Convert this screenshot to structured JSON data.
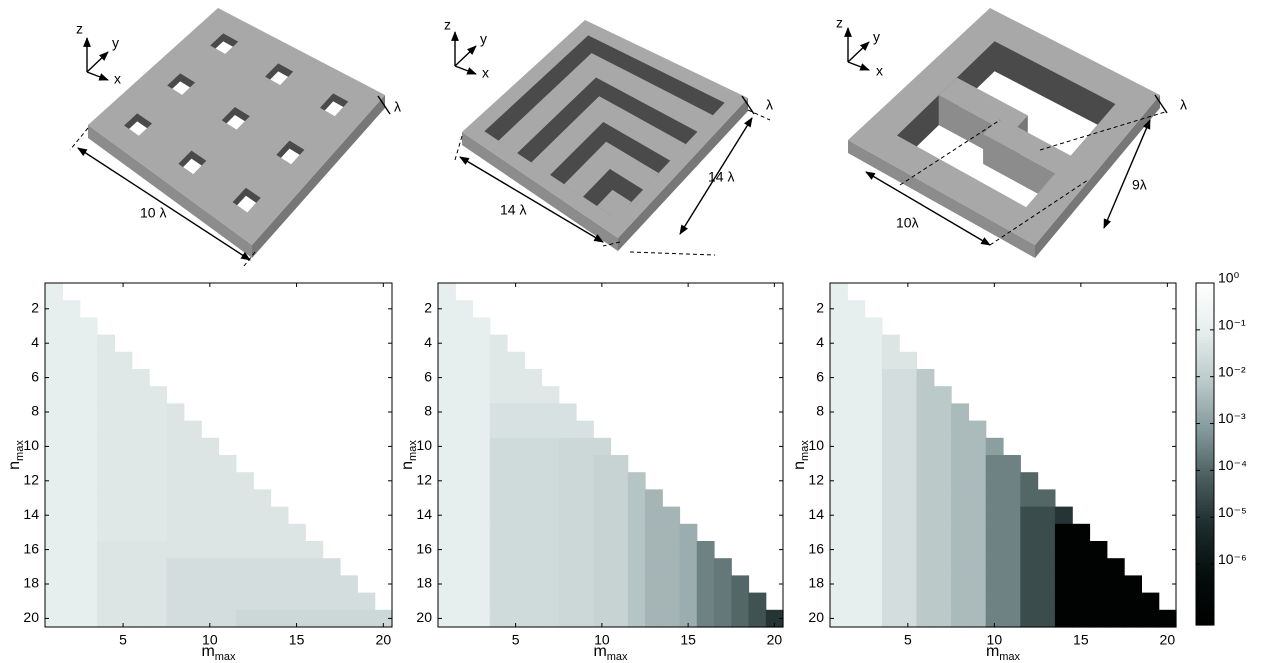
{
  "illustrations": [
    {
      "labels": [
        "z",
        "y",
        "x",
        "λ",
        "10 λ"
      ]
    },
    {
      "labels": [
        "z",
        "y",
        "x",
        "λ",
        "14 λ",
        "14 λ"
      ]
    },
    {
      "labels": [
        "z",
        "y",
        "x",
        "λ",
        "10λ",
        "9λ"
      ]
    }
  ],
  "colorbar": {
    "log": true,
    "clim": [
      5e-08,
      1
    ],
    "colormap": [
      "#000000",
      "#050c0c",
      "#1c2b2b",
      "#4a5d5d",
      "#84999a",
      "#bccaca",
      "#e6eded",
      "#ffffff"
    ],
    "ticks": [
      {
        "value": 1,
        "label": "10⁰"
      },
      {
        "value": 0.1,
        "label": "10⁻¹"
      },
      {
        "value": 0.01,
        "label": "10⁻²"
      },
      {
        "value": 0.001,
        "label": "10⁻³"
      },
      {
        "value": 0.0001,
        "label": "10⁻⁴"
      },
      {
        "value": 1e-05,
        "label": "10⁻⁵"
      },
      {
        "value": 1e-06,
        "label": "10⁻⁶"
      }
    ]
  },
  "chart_data": [
    {
      "type": "heatmap",
      "xlabel": "m",
      "xlabel_sub": "max",
      "ylabel": "n",
      "ylabel_sub": "max",
      "x": [
        1,
        2,
        3,
        4,
        5,
        6,
        7,
        8,
        9,
        10,
        11,
        12,
        13,
        14,
        15,
        16,
        17,
        18,
        19,
        20
      ],
      "y": [
        1,
        2,
        3,
        4,
        5,
        6,
        7,
        8,
        9,
        10,
        11,
        12,
        13,
        14,
        15,
        16,
        17,
        18,
        19,
        20
      ],
      "xlim": [
        0.5,
        20.5
      ],
      "ylim": [
        20.5,
        0.5
      ],
      "xticks": [
        5,
        10,
        15,
        20
      ],
      "yticks": [
        2,
        4,
        6,
        8,
        10,
        12,
        14,
        16,
        18,
        20
      ],
      "z": [
        [
          0.1
        ],
        [
          0.1,
          0.1
        ],
        [
          0.1,
          0.1,
          0.1
        ],
        [
          0.1,
          0.1,
          0.1,
          0.06
        ],
        [
          0.1,
          0.1,
          0.1,
          0.06,
          0.06
        ],
        [
          0.1,
          0.1,
          0.1,
          0.06,
          0.06,
          0.06
        ],
        [
          0.1,
          0.1,
          0.1,
          0.06,
          0.06,
          0.06,
          0.06
        ],
        [
          0.1,
          0.1,
          0.1,
          0.06,
          0.06,
          0.06,
          0.06,
          0.05
        ],
        [
          0.1,
          0.1,
          0.1,
          0.06,
          0.06,
          0.06,
          0.06,
          0.05,
          0.05
        ],
        [
          0.1,
          0.1,
          0.1,
          0.06,
          0.06,
          0.06,
          0.06,
          0.05,
          0.05,
          0.05
        ],
        [
          0.1,
          0.1,
          0.1,
          0.06,
          0.06,
          0.06,
          0.06,
          0.05,
          0.05,
          0.05,
          0.05
        ],
        [
          0.1,
          0.1,
          0.1,
          0.06,
          0.06,
          0.06,
          0.06,
          0.05,
          0.05,
          0.05,
          0.05,
          0.05
        ],
        [
          0.1,
          0.1,
          0.1,
          0.06,
          0.06,
          0.06,
          0.06,
          0.05,
          0.05,
          0.05,
          0.05,
          0.05,
          0.05
        ],
        [
          0.1,
          0.1,
          0.1,
          0.06,
          0.06,
          0.06,
          0.06,
          0.05,
          0.05,
          0.05,
          0.05,
          0.05,
          0.05,
          0.05
        ],
        [
          0.1,
          0.1,
          0.1,
          0.06,
          0.06,
          0.06,
          0.06,
          0.05,
          0.05,
          0.05,
          0.05,
          0.05,
          0.05,
          0.05,
          0.05
        ],
        [
          0.1,
          0.1,
          0.1,
          0.05,
          0.05,
          0.05,
          0.05,
          0.05,
          0.05,
          0.05,
          0.05,
          0.05,
          0.05,
          0.05,
          0.05,
          0.05
        ],
        [
          0.1,
          0.1,
          0.1,
          0.05,
          0.05,
          0.05,
          0.05,
          0.03,
          0.03,
          0.03,
          0.03,
          0.03,
          0.03,
          0.03,
          0.03,
          0.03,
          0.03
        ],
        [
          0.1,
          0.1,
          0.1,
          0.05,
          0.05,
          0.05,
          0.05,
          0.03,
          0.03,
          0.03,
          0.03,
          0.03,
          0.03,
          0.03,
          0.03,
          0.03,
          0.03,
          0.03
        ],
        [
          0.1,
          0.1,
          0.1,
          0.05,
          0.05,
          0.05,
          0.05,
          0.03,
          0.03,
          0.03,
          0.03,
          0.03,
          0.03,
          0.03,
          0.03,
          0.03,
          0.03,
          0.03,
          0.03
        ],
        [
          0.1,
          0.1,
          0.1,
          0.05,
          0.05,
          0.05,
          0.05,
          0.03,
          0.03,
          0.03,
          0.03,
          0.02,
          0.02,
          0.02,
          0.02,
          0.02,
          0.02,
          0.02,
          0.02,
          0.02
        ]
      ]
    },
    {
      "type": "heatmap",
      "xlabel": "m",
      "xlabel_sub": "max",
      "ylabel": "n",
      "ylabel_sub": "max",
      "x": [
        1,
        2,
        3,
        4,
        5,
        6,
        7,
        8,
        9,
        10,
        11,
        12,
        13,
        14,
        15,
        16,
        17,
        18,
        19,
        20
      ],
      "y": [
        1,
        2,
        3,
        4,
        5,
        6,
        7,
        8,
        9,
        10,
        11,
        12,
        13,
        14,
        15,
        16,
        17,
        18,
        19,
        20
      ],
      "xlim": [
        0.5,
        20.5
      ],
      "ylim": [
        20.5,
        0.5
      ],
      "xticks": [
        5,
        10,
        15,
        20
      ],
      "yticks": [
        2,
        4,
        6,
        8,
        10,
        12,
        14,
        16,
        18,
        20
      ],
      "z": [
        [
          0.1
        ],
        [
          0.1,
          0.1
        ],
        [
          0.1,
          0.1,
          0.1
        ],
        [
          0.1,
          0.1,
          0.1,
          0.06
        ],
        [
          0.1,
          0.1,
          0.1,
          0.06,
          0.06
        ],
        [
          0.1,
          0.1,
          0.1,
          0.06,
          0.06,
          0.06
        ],
        [
          0.1,
          0.1,
          0.1,
          0.06,
          0.06,
          0.06,
          0.06
        ],
        [
          0.1,
          0.1,
          0.1,
          0.04,
          0.04,
          0.04,
          0.04,
          0.04
        ],
        [
          0.1,
          0.1,
          0.1,
          0.04,
          0.04,
          0.04,
          0.04,
          0.04,
          0.04
        ],
        [
          0.1,
          0.1,
          0.1,
          0.025,
          0.025,
          0.025,
          0.025,
          0.02,
          0.02,
          0.02
        ],
        [
          0.1,
          0.1,
          0.1,
          0.025,
          0.025,
          0.025,
          0.025,
          0.02,
          0.02,
          0.015,
          0.015
        ],
        [
          0.1,
          0.1,
          0.1,
          0.025,
          0.025,
          0.025,
          0.025,
          0.02,
          0.02,
          0.015,
          0.015,
          0.006
        ],
        [
          0.1,
          0.1,
          0.1,
          0.025,
          0.025,
          0.025,
          0.025,
          0.02,
          0.02,
          0.015,
          0.015,
          0.006,
          0.003
        ],
        [
          0.1,
          0.1,
          0.1,
          0.025,
          0.025,
          0.025,
          0.025,
          0.02,
          0.02,
          0.015,
          0.015,
          0.006,
          0.003,
          0.003
        ],
        [
          0.1,
          0.1,
          0.1,
          0.025,
          0.025,
          0.025,
          0.025,
          0.02,
          0.02,
          0.015,
          0.015,
          0.006,
          0.003,
          0.003,
          0.002
        ],
        [
          0.1,
          0.1,
          0.1,
          0.025,
          0.025,
          0.025,
          0.025,
          0.02,
          0.02,
          0.015,
          0.015,
          0.006,
          0.003,
          0.003,
          0.002,
          0.0003
        ],
        [
          0.1,
          0.1,
          0.1,
          0.025,
          0.025,
          0.025,
          0.025,
          0.02,
          0.02,
          0.015,
          0.015,
          0.006,
          0.003,
          0.003,
          0.002,
          0.0003,
          0.0002
        ],
        [
          0.1,
          0.1,
          0.1,
          0.025,
          0.025,
          0.025,
          0.025,
          0.02,
          0.02,
          0.015,
          0.015,
          0.006,
          0.003,
          0.003,
          0.002,
          0.0003,
          0.0002,
          0.0001
        ],
        [
          0.1,
          0.1,
          0.1,
          0.025,
          0.025,
          0.025,
          0.025,
          0.02,
          0.02,
          0.015,
          0.015,
          0.006,
          0.003,
          0.003,
          0.002,
          0.0003,
          0.0002,
          0.0001,
          4e-05
        ],
        [
          0.1,
          0.1,
          0.1,
          0.025,
          0.025,
          0.025,
          0.025,
          0.02,
          0.02,
          0.015,
          0.015,
          0.006,
          0.003,
          0.003,
          0.002,
          0.0003,
          0.0002,
          0.0001,
          4e-05,
          1e-05
        ]
      ]
    },
    {
      "type": "heatmap",
      "xlabel": "m",
      "xlabel_sub": "max",
      "ylabel": "n",
      "ylabel_sub": "max",
      "x": [
        1,
        2,
        3,
        4,
        5,
        6,
        7,
        8,
        9,
        10,
        11,
        12,
        13,
        14,
        15,
        16,
        17,
        18,
        19,
        20
      ],
      "y": [
        1,
        2,
        3,
        4,
        5,
        6,
        7,
        8,
        9,
        10,
        11,
        12,
        13,
        14,
        15,
        16,
        17,
        18,
        19,
        20
      ],
      "xlim": [
        0.5,
        20.5
      ],
      "ylim": [
        20.5,
        0.5
      ],
      "xticks": [
        5,
        10,
        15,
        20
      ],
      "yticks": [
        2,
        4,
        6,
        8,
        10,
        12,
        14,
        16,
        18,
        20
      ],
      "z": [
        [
          0.1
        ],
        [
          0.1,
          0.1
        ],
        [
          0.1,
          0.1,
          0.1
        ],
        [
          0.1,
          0.1,
          0.1,
          0.05
        ],
        [
          0.1,
          0.1,
          0.1,
          0.05,
          0.05
        ],
        [
          0.1,
          0.1,
          0.1,
          0.03,
          0.03,
          0.008
        ],
        [
          0.1,
          0.1,
          0.1,
          0.03,
          0.03,
          0.008,
          0.008
        ],
        [
          0.1,
          0.1,
          0.1,
          0.03,
          0.03,
          0.008,
          0.008,
          0.004
        ],
        [
          0.1,
          0.1,
          0.1,
          0.03,
          0.03,
          0.008,
          0.008,
          0.004,
          0.004
        ],
        [
          0.1,
          0.1,
          0.1,
          0.03,
          0.03,
          0.008,
          0.008,
          0.004,
          0.004,
          0.001
        ],
        [
          0.1,
          0.1,
          0.1,
          0.03,
          0.03,
          0.008,
          0.008,
          0.004,
          0.004,
          0.0003,
          0.0003
        ],
        [
          0.1,
          0.1,
          0.1,
          0.03,
          0.03,
          0.008,
          0.008,
          0.004,
          0.004,
          0.0003,
          0.0003,
          0.0001
        ],
        [
          0.1,
          0.1,
          0.1,
          0.03,
          0.03,
          0.008,
          0.008,
          0.004,
          0.004,
          0.0003,
          0.0003,
          0.0001,
          0.0001
        ],
        [
          0.1,
          0.1,
          0.1,
          0.03,
          0.03,
          0.008,
          0.008,
          0.004,
          0.004,
          0.0003,
          0.0003,
          3e-05,
          3e-05,
          1e-05
        ],
        [
          0.1,
          0.1,
          0.1,
          0.03,
          0.03,
          0.008,
          0.008,
          0.004,
          0.004,
          0.0003,
          0.0003,
          3e-05,
          3e-05,
          1e-07,
          1e-07
        ],
        [
          0.1,
          0.1,
          0.1,
          0.03,
          0.03,
          0.008,
          0.008,
          0.004,
          0.004,
          0.0003,
          0.0003,
          3e-05,
          3e-05,
          1e-07,
          1e-07,
          1e-07
        ],
        [
          0.1,
          0.1,
          0.1,
          0.03,
          0.03,
          0.008,
          0.008,
          0.004,
          0.004,
          0.0003,
          0.0003,
          3e-05,
          3e-05,
          1e-07,
          1e-07,
          1e-07,
          1e-07
        ],
        [
          0.1,
          0.1,
          0.1,
          0.03,
          0.03,
          0.008,
          0.008,
          0.004,
          0.004,
          0.0003,
          0.0003,
          3e-05,
          3e-05,
          1e-07,
          1e-07,
          1e-07,
          1e-07,
          1e-07
        ],
        [
          0.1,
          0.1,
          0.1,
          0.03,
          0.03,
          0.008,
          0.008,
          0.004,
          0.004,
          0.0003,
          0.0003,
          3e-05,
          3e-05,
          1e-07,
          1e-07,
          1e-07,
          1e-07,
          1e-07,
          1e-07
        ],
        [
          0.1,
          0.1,
          0.1,
          0.03,
          0.03,
          0.008,
          0.008,
          0.004,
          0.004,
          0.0003,
          0.0003,
          3e-05,
          3e-05,
          1e-07,
          1e-07,
          1e-07,
          1e-07,
          1e-07,
          1e-07,
          1e-07
        ]
      ]
    }
  ]
}
